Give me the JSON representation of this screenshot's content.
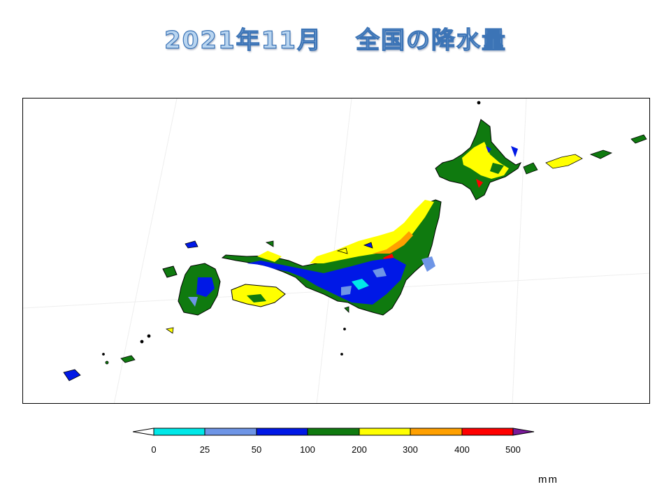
{
  "title": {
    "year_month": "2021年11月",
    "subject": "全国の降水量"
  },
  "legend": {
    "unit": "mm",
    "ticks": [
      "0",
      "25",
      "50",
      "100",
      "200",
      "300",
      "400",
      "500"
    ],
    "colors": [
      "#00e8e8",
      "#6e95e6",
      "#0018e6",
      "#0f7a0f",
      "#ffff00",
      "#ffa000",
      "#ff0000"
    ],
    "under_color": "#ffffff",
    "over_color": "#7a1a9a"
  },
  "map": {
    "region": "Japan",
    "colors": {
      "land_outline": "#000000",
      "wet": "#ffff00",
      "very_wet": "#ffa000",
      "extreme": "#ff0000"
    }
  }
}
